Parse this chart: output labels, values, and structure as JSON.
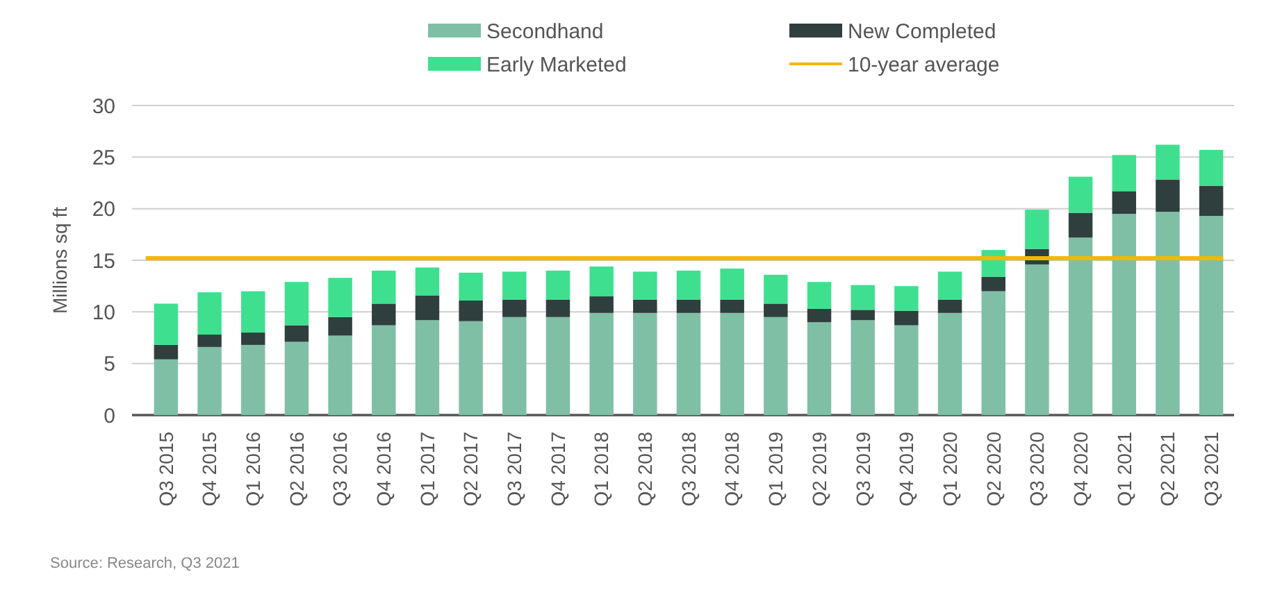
{
  "chart_data": {
    "type": "bar",
    "stacked": true,
    "ylabel": "Millions sq ft",
    "categories": [
      "Q3 2015",
      "Q4 2015",
      "Q1 2016",
      "Q2 2016",
      "Q3 2016",
      "Q4 2016",
      "Q1 2017",
      "Q2 2017",
      "Q3 2017",
      "Q4 2017",
      "Q1 2018",
      "Q2 2018",
      "Q3 2018",
      "Q4 2018",
      "Q1 2019",
      "Q2 2019",
      "Q3 2019",
      "Q4 2019",
      "Q1 2020",
      "Q2 2020",
      "Q3 2020",
      "Q4 2020",
      "Q1 2021",
      "Q2 2021",
      "Q3 2021"
    ],
    "series": [
      {
        "name": "Secondhand",
        "color": "#7fbfa6",
        "values": [
          5.4,
          6.6,
          6.8,
          7.1,
          7.7,
          8.7,
          9.2,
          9.1,
          9.5,
          9.5,
          9.9,
          9.9,
          9.9,
          9.9,
          9.5,
          9.0,
          9.2,
          8.7,
          9.9,
          12.0,
          14.6,
          17.2,
          19.5,
          19.7,
          19.3
        ]
      },
      {
        "name": "New Completed",
        "color": "#2f3f3d",
        "values": [
          1.4,
          1.2,
          1.2,
          1.6,
          1.8,
          2.1,
          2.4,
          2.0,
          1.7,
          1.7,
          1.6,
          1.3,
          1.3,
          1.3,
          1.3,
          1.3,
          1.0,
          1.4,
          1.3,
          1.4,
          1.5,
          2.4,
          2.2,
          3.1,
          2.9
        ]
      },
      {
        "name": "Early Marketed",
        "color": "#3ee08f",
        "values": [
          4.0,
          4.1,
          4.0,
          4.2,
          3.8,
          3.2,
          2.7,
          2.7,
          2.7,
          2.8,
          2.9,
          2.7,
          2.8,
          3.0,
          2.8,
          2.6,
          2.4,
          2.4,
          2.7,
          2.6,
          3.8,
          3.5,
          3.5,
          3.4,
          3.5
        ]
      }
    ],
    "ylim": [
      0,
      30
    ],
    "yticks": [
      0,
      5,
      10,
      15,
      20,
      25,
      30
    ],
    "grid": "y",
    "legend": "top",
    "ref_lines": [
      {
        "axis": "y",
        "value": 15.2,
        "label": "10-year average",
        "color": "#f2b800"
      }
    ],
    "annotations": [
      "Source: Research, Q3 2021"
    ]
  }
}
